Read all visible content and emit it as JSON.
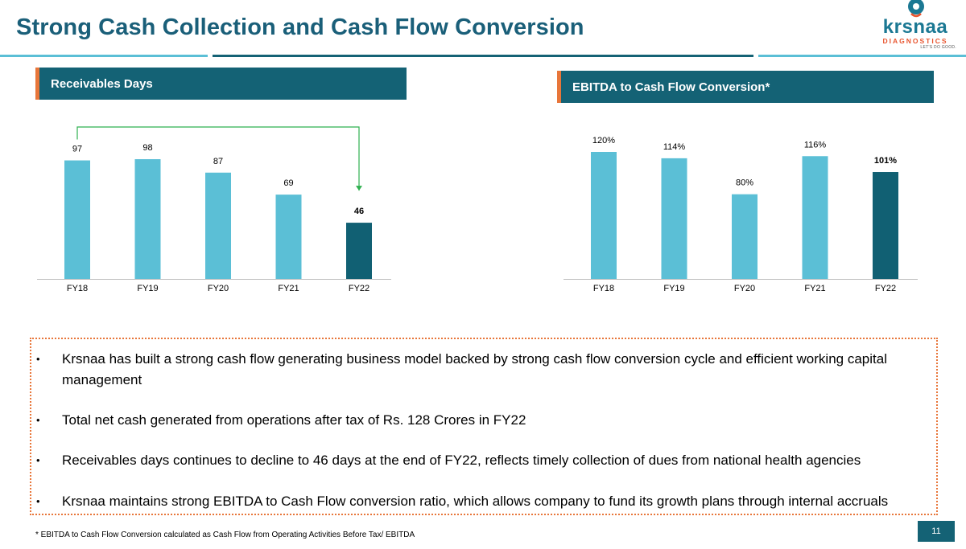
{
  "slide": {
    "title": "Strong Cash Collection and Cash Flow Conversion",
    "page_number": "11",
    "footnote": "* EBITDA to Cash Flow Conversion calculated as Cash Flow from Operating Activities Before Tax/ EBITDA"
  },
  "logo": {
    "text": "krsnaa",
    "subtext": "DIAGNOSTICS",
    "tagline": "LET'S DO GOOD."
  },
  "bullets": [
    "Krsnaa has built a strong cash flow generating business model backed by strong cash flow conversion cycle and efficient working capital management",
    "Total net cash generated from operations after tax of Rs. 128 Crores in FY22",
    "Receivables days continues to decline to 46 days at the end of FY22, reflects timely collection of dues from national health agencies",
    "Krsnaa maintains strong EBITDA to Cash Flow conversion ratio, which allows company to fund its growth plans through internal accruals"
  ],
  "colors": {
    "primary": "#146275",
    "bar_light": "#5bbfd6",
    "bar_dark": "#116073",
    "accent": "#e8763a",
    "arrow": "#2fb04f",
    "title": "#1a5f79"
  },
  "chart_data": [
    {
      "type": "bar",
      "title": "Receivables Days",
      "categories": [
        "FY18",
        "FY19",
        "FY20",
        "FY21",
        "FY22"
      ],
      "values": [
        97,
        98,
        87,
        69,
        46
      ],
      "labels": [
        "97",
        "98",
        "87",
        "69",
        "46"
      ],
      "highlight_index": 4,
      "ylim": [
        0,
        100
      ],
      "annotation": "decline arrow from FY18 to FY22"
    },
    {
      "type": "bar",
      "title": "EBITDA to Cash Flow Conversion*",
      "categories": [
        "FY18",
        "FY19",
        "FY20",
        "FY21",
        "FY22"
      ],
      "values": [
        120,
        114,
        80,
        116,
        101
      ],
      "labels": [
        "120%",
        "114%",
        "80%",
        "116%",
        "101%"
      ],
      "highlight_index": 4,
      "ylim": [
        0,
        120
      ]
    }
  ]
}
